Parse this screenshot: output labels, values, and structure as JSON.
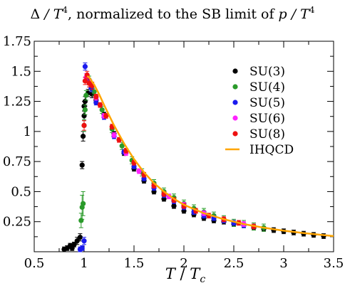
{
  "chart_data": {
    "type": "scatter",
    "title_parts": {
      "delta": "Δ",
      "over_t": " / T",
      "exp1": "4",
      "middle": ", normalized to the SB limit of ",
      "p": "p",
      "over_t2": " / T",
      "exp2": "4"
    },
    "xlabel_parts": {
      "t": "T",
      "sep": " / ",
      "t2": "T",
      "sub": "c"
    },
    "ylabel": "",
    "xlim": [
      0.5,
      3.5
    ],
    "ylim": [
      0,
      1.75
    ],
    "x_ticks": [
      {
        "value": 0.5,
        "label": "0.5"
      },
      {
        "value": 1.0,
        "label": "1"
      },
      {
        "value": 1.5,
        "label": "1.5"
      },
      {
        "value": 2.0,
        "label": "2"
      },
      {
        "value": 2.5,
        "label": "2.5"
      },
      {
        "value": 3.0,
        "label": "3"
      },
      {
        "value": 3.5,
        "label": "3.5"
      }
    ],
    "y_ticks": [
      {
        "value": 0.25,
        "label": "0.25"
      },
      {
        "value": 0.5,
        "label": "0.5"
      },
      {
        "value": 0.75,
        "label": "0.75"
      },
      {
        "value": 1.0,
        "label": "1"
      },
      {
        "value": 1.25,
        "label": "1.25"
      },
      {
        "value": 1.5,
        "label": "1.5"
      },
      {
        "value": 1.75,
        "label": "1.75"
      }
    ],
    "legend_position": "top-right",
    "series": [
      {
        "name": "SU(3)",
        "color": "#000000",
        "kind": "points",
        "points": [
          [
            0.8,
            0.02,
            0.02
          ],
          [
            0.83,
            0.03,
            0.02
          ],
          [
            0.86,
            0.05,
            0.02
          ],
          [
            0.88,
            0.03,
            0.02
          ],
          [
            0.9,
            0.06,
            0.02
          ],
          [
            0.93,
            0.09,
            0.03
          ],
          [
            0.96,
            0.12,
            0.03
          ],
          [
            0.98,
            0.72,
            0.03
          ],
          [
            0.99,
            0.96,
            0.04
          ],
          [
            1.0,
            1.13,
            0.04
          ],
          [
            1.0,
            1.21,
            0.04
          ],
          [
            1.01,
            1.25,
            0.04
          ],
          [
            1.04,
            1.32,
            0.03
          ],
          [
            1.08,
            1.31,
            0.03
          ],
          [
            1.12,
            1.26,
            0.03
          ],
          [
            1.2,
            1.14,
            0.02
          ],
          [
            1.3,
            0.98,
            0.02
          ],
          [
            1.4,
            0.82,
            0.02
          ],
          [
            1.5,
            0.69,
            0.02
          ],
          [
            1.6,
            0.59,
            0.02
          ],
          [
            1.7,
            0.5,
            0.02
          ],
          [
            1.8,
            0.44,
            0.02
          ],
          [
            1.9,
            0.38,
            0.02
          ],
          [
            2.0,
            0.34,
            0.02
          ],
          [
            2.1,
            0.31,
            0.02
          ],
          [
            2.2,
            0.28,
            0.02
          ],
          [
            2.3,
            0.26,
            0.02
          ],
          [
            2.4,
            0.25,
            0.02
          ],
          [
            2.5,
            0.23,
            0.02
          ],
          [
            2.6,
            0.22,
            0.02
          ],
          [
            2.7,
            0.2,
            0.02
          ],
          [
            2.8,
            0.19,
            0.02
          ],
          [
            2.9,
            0.18,
            0.02
          ],
          [
            3.0,
            0.17,
            0.02
          ],
          [
            3.1,
            0.16,
            0.02
          ],
          [
            3.2,
            0.15,
            0.02
          ],
          [
            3.3,
            0.14,
            0.02
          ],
          [
            3.4,
            0.13,
            0.02
          ]
        ]
      },
      {
        "name": "SU(4)",
        "color": "#2a9a2a",
        "kind": "points",
        "points": [
          [
            0.97,
            0.26,
            0.06
          ],
          [
            0.98,
            0.37,
            0.1
          ],
          [
            0.99,
            0.4,
            0.1
          ],
          [
            1.0,
            1.05,
            0.05
          ],
          [
            1.01,
            1.18,
            0.04
          ],
          [
            1.02,
            1.3,
            0.04
          ],
          [
            1.05,
            1.43,
            0.03
          ],
          [
            1.1,
            1.33,
            0.03
          ],
          [
            1.18,
            1.18,
            0.03
          ],
          [
            1.28,
            1.02,
            0.03
          ],
          [
            1.38,
            0.88,
            0.03
          ],
          [
            1.48,
            0.76,
            0.03
          ],
          [
            1.58,
            0.66,
            0.03
          ],
          [
            1.7,
            0.57,
            0.03
          ],
          [
            1.8,
            0.5,
            0.03
          ],
          [
            1.9,
            0.45,
            0.03
          ],
          [
            2.0,
            0.4,
            0.03
          ],
          [
            2.1,
            0.36,
            0.03
          ],
          [
            2.2,
            0.33,
            0.03
          ],
          [
            2.3,
            0.3,
            0.03
          ],
          [
            2.4,
            0.27,
            0.03
          ],
          [
            2.5,
            0.24,
            0.03
          ],
          [
            2.6,
            0.23,
            0.03
          ],
          [
            2.7,
            0.21,
            0.03
          ],
          [
            2.8,
            0.2,
            0.03
          ]
        ]
      },
      {
        "name": "SU(5)",
        "color": "#1a1aee",
        "kind": "points",
        "points": [
          [
            0.96,
            0.02,
            0.02
          ],
          [
            0.98,
            0.03,
            0.02
          ],
          [
            1.0,
            0.09,
            0.03
          ],
          [
            1.01,
            1.54,
            0.03
          ],
          [
            1.03,
            1.44,
            0.03
          ],
          [
            1.07,
            1.36,
            0.03
          ],
          [
            1.12,
            1.24,
            0.02
          ],
          [
            1.2,
            1.12,
            0.02
          ],
          [
            1.3,
            0.96,
            0.02
          ],
          [
            1.4,
            0.83,
            0.02
          ],
          [
            1.5,
            0.71,
            0.02
          ],
          [
            1.6,
            0.61,
            0.02
          ],
          [
            1.7,
            0.53,
            0.02
          ],
          [
            1.8,
            0.47,
            0.02
          ],
          [
            1.9,
            0.42,
            0.02
          ],
          [
            2.0,
            0.37,
            0.02
          ],
          [
            2.1,
            0.33,
            0.02
          ],
          [
            2.2,
            0.3,
            0.02
          ],
          [
            2.3,
            0.28,
            0.02
          ],
          [
            2.4,
            0.26,
            0.02
          ],
          [
            2.5,
            0.24,
            0.02
          ],
          [
            2.6,
            0.22,
            0.02
          ],
          [
            2.7,
            0.21,
            0.02
          ]
        ]
      },
      {
        "name": "SU(6)",
        "color": "#ff22ff",
        "kind": "points",
        "points": [
          [
            1.02,
            1.45,
            0.03
          ],
          [
            1.06,
            1.4,
            0.03
          ],
          [
            1.12,
            1.28,
            0.02
          ],
          [
            1.2,
            1.13,
            0.02
          ],
          [
            1.3,
            0.97,
            0.02
          ],
          [
            1.42,
            0.82,
            0.02
          ],
          [
            1.55,
            0.67,
            0.02
          ],
          [
            1.7,
            0.55,
            0.02
          ],
          [
            1.85,
            0.46,
            0.02
          ],
          [
            2.0,
            0.39,
            0.02
          ],
          [
            2.2,
            0.32,
            0.02
          ],
          [
            2.4,
            0.27,
            0.02
          ],
          [
            2.6,
            0.23,
            0.02
          ]
        ]
      },
      {
        "name": "SU(8)",
        "color": "#ee1111",
        "kind": "points",
        "points": [
          [
            1.0,
            1.05,
            0.04
          ],
          [
            1.01,
            1.42,
            0.03
          ],
          [
            1.03,
            1.47,
            0.03
          ],
          [
            1.05,
            1.4,
            0.03
          ],
          [
            1.08,
            1.38,
            0.03
          ],
          [
            1.12,
            1.29,
            0.02
          ],
          [
            1.16,
            1.22,
            0.02
          ],
          [
            1.22,
            1.13,
            0.02
          ],
          [
            1.28,
            1.04,
            0.02
          ],
          [
            1.35,
            0.93,
            0.02
          ],
          [
            1.42,
            0.84,
            0.02
          ],
          [
            1.5,
            0.74,
            0.02
          ],
          [
            1.6,
            0.64,
            0.02
          ],
          [
            1.7,
            0.55,
            0.02
          ],
          [
            1.8,
            0.48,
            0.02
          ],
          [
            1.9,
            0.43,
            0.02
          ],
          [
            2.0,
            0.38,
            0.02
          ],
          [
            2.12,
            0.34,
            0.02
          ],
          [
            2.25,
            0.3,
            0.02
          ],
          [
            2.4,
            0.27,
            0.02
          ],
          [
            2.55,
            0.24,
            0.02
          ],
          [
            2.7,
            0.21,
            0.02
          ]
        ]
      },
      {
        "name": "IHQCD",
        "color": "#ffa500",
        "kind": "line",
        "points": [
          [
            1.03,
            1.46
          ],
          [
            1.05,
            1.45
          ],
          [
            1.1,
            1.39
          ],
          [
            1.15,
            1.31
          ],
          [
            1.2,
            1.22
          ],
          [
            1.3,
            1.05
          ],
          [
            1.4,
            0.9
          ],
          [
            1.5,
            0.77
          ],
          [
            1.6,
            0.66
          ],
          [
            1.7,
            0.57
          ],
          [
            1.8,
            0.5
          ],
          [
            1.9,
            0.44
          ],
          [
            2.0,
            0.39
          ],
          [
            2.2,
            0.32
          ],
          [
            2.4,
            0.27
          ],
          [
            2.6,
            0.23
          ],
          [
            2.8,
            0.2
          ],
          [
            3.0,
            0.175
          ],
          [
            3.2,
            0.155
          ],
          [
            3.5,
            0.13
          ]
        ]
      }
    ]
  }
}
